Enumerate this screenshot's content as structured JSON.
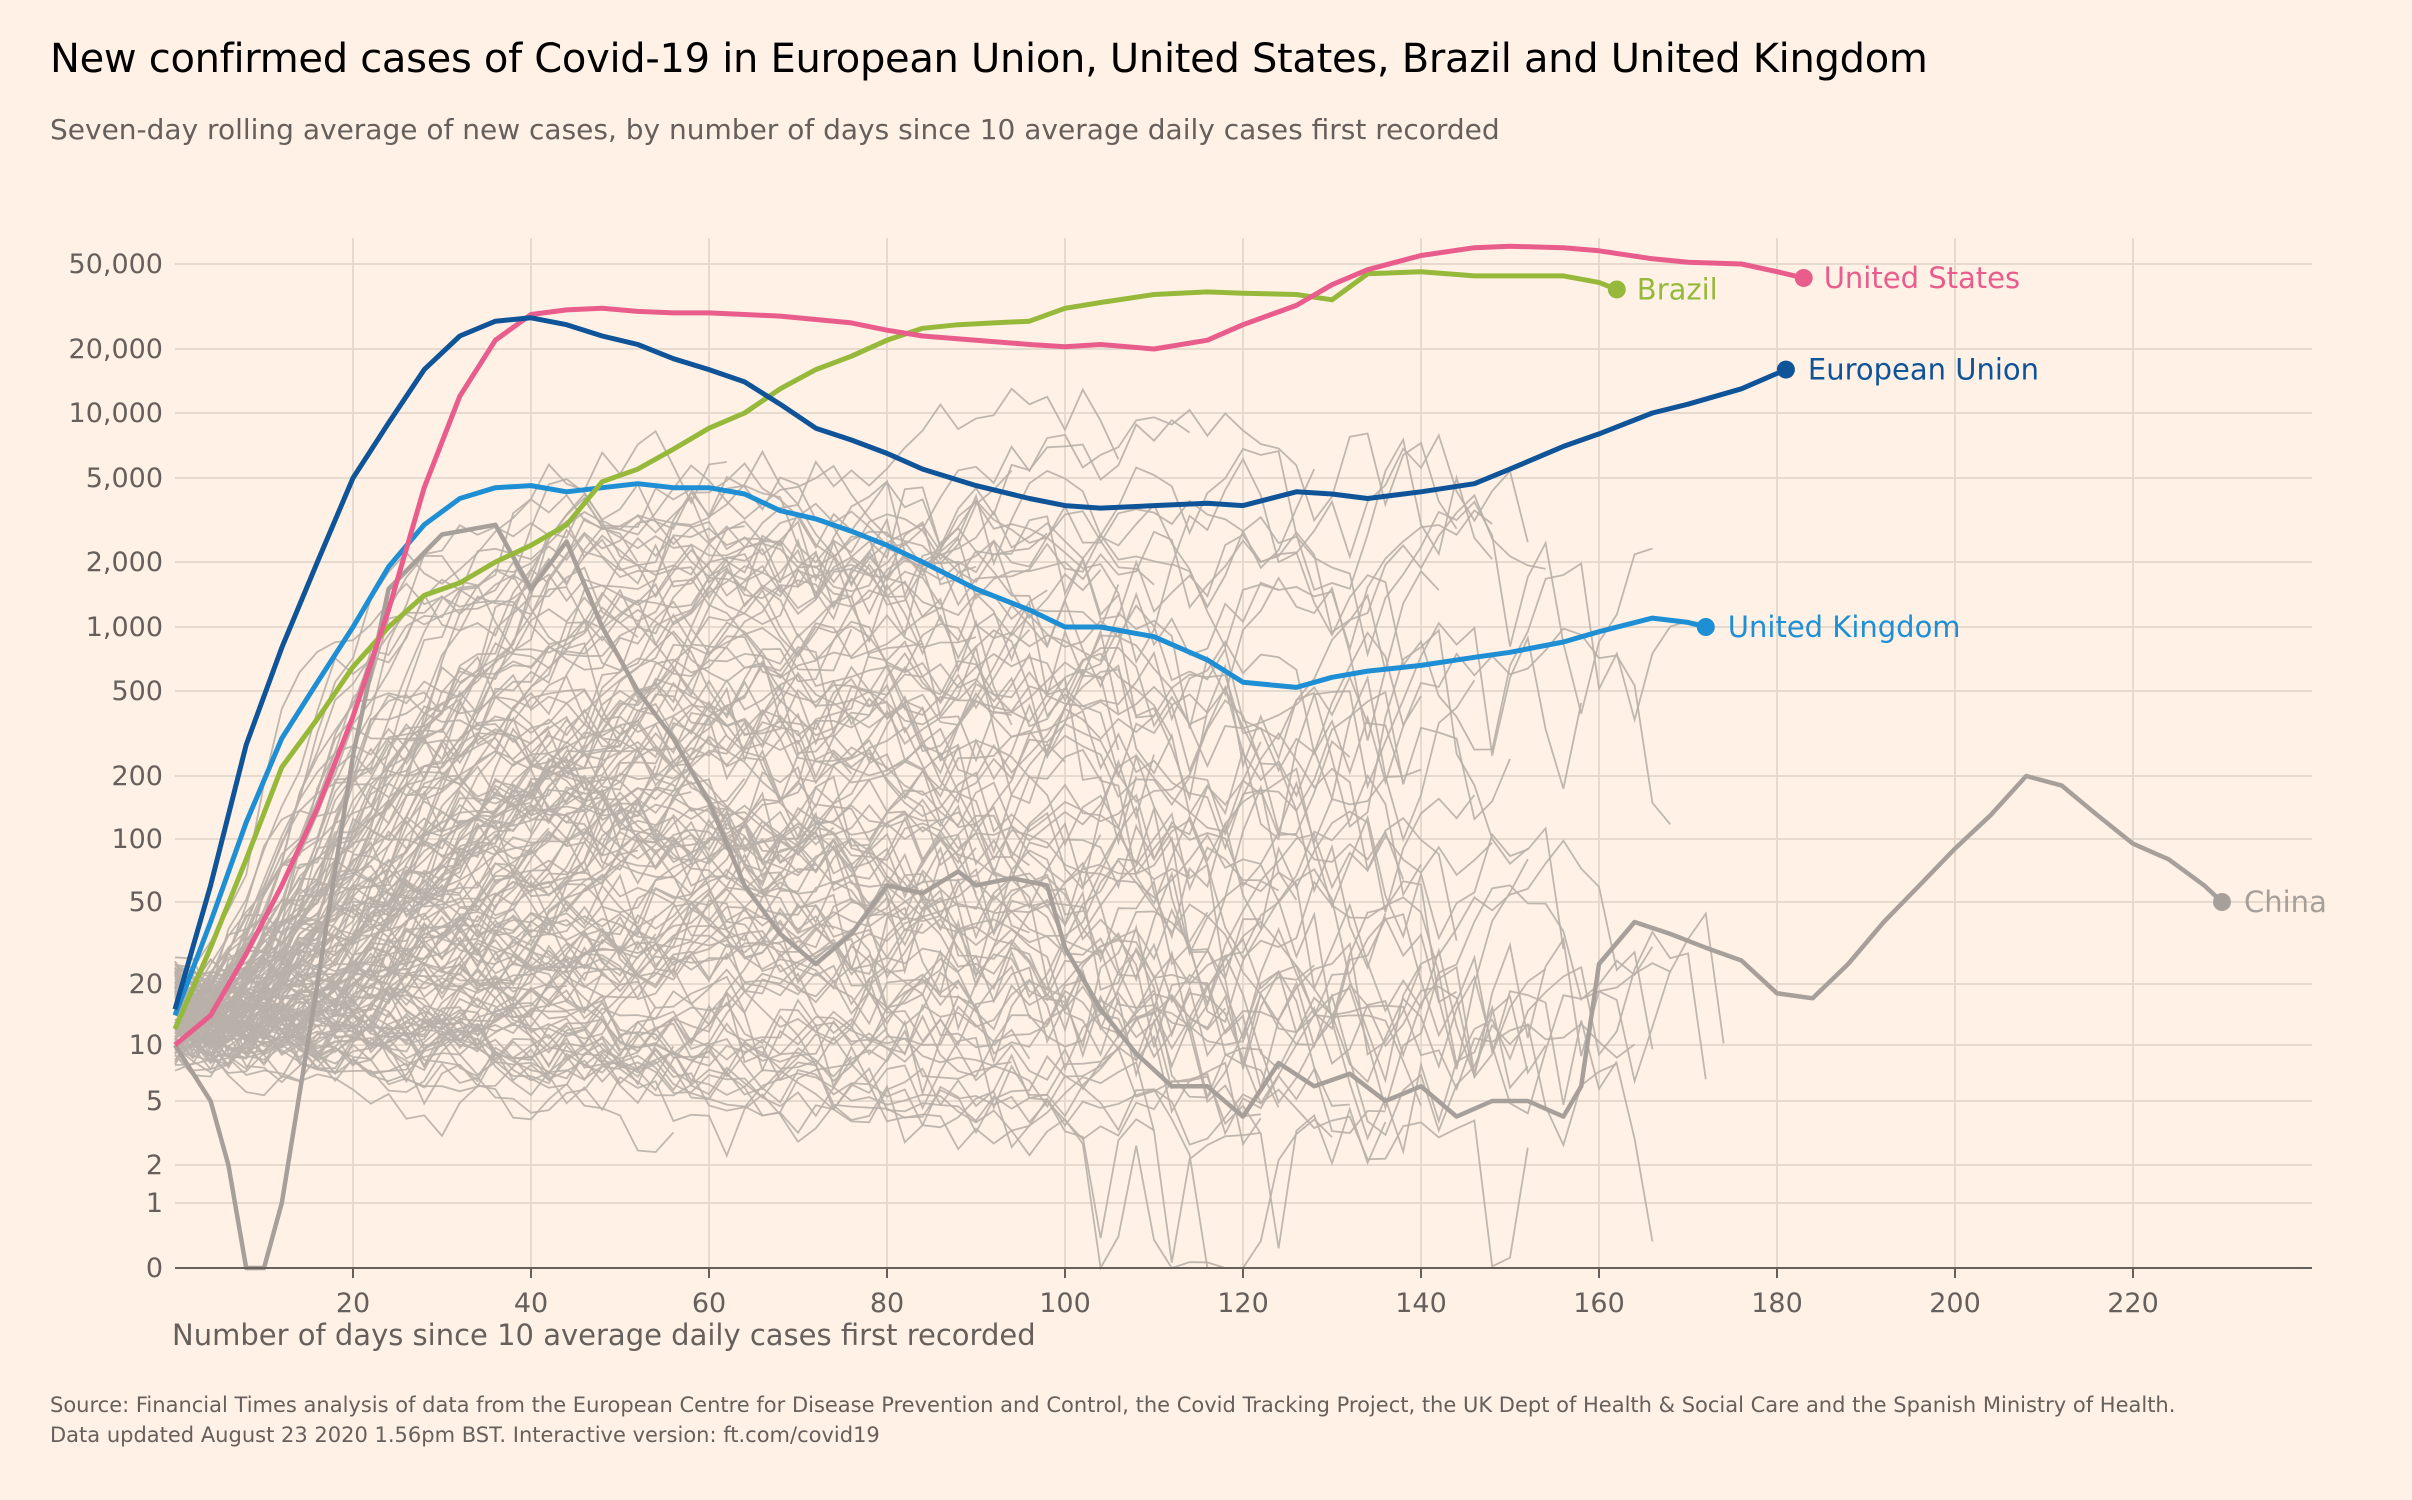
{
  "chart_data": {
    "type": "line",
    "title": "New confirmed cases of Covid-19 in European Union, United States, Brazil and United Kingdom",
    "subtitle": "Seven-day rolling average of new cases, by number of days since 10 average daily cases first recorded",
    "xlabel": "Number of days since 10 average daily cases first recorded",
    "ylabel": "",
    "y_scale": "log",
    "x_range": [
      0,
      240
    ],
    "x_ticks": [
      20,
      40,
      60,
      80,
      100,
      120,
      140,
      160,
      180,
      200,
      220
    ],
    "y_ticks": [
      0,
      1,
      2,
      5,
      10,
      20,
      50,
      100,
      200,
      500,
      1000,
      2000,
      5000,
      10000,
      20000,
      50000
    ],
    "y_tick_labels": [
      "0",
      "1",
      "2",
      "5",
      "10",
      "20",
      "50",
      "100",
      "200",
      "500",
      "1,000",
      "2,000",
      "5,000",
      "10,000",
      "20,000",
      "50,000"
    ],
    "grid": true,
    "series": [
      {
        "name": "United States",
        "color": "#e95d8c",
        "x": [
          0,
          4,
          8,
          12,
          16,
          20,
          24,
          28,
          32,
          36,
          40,
          44,
          48,
          52,
          56,
          60,
          64,
          68,
          72,
          76,
          80,
          84,
          90,
          96,
          100,
          104,
          110,
          116,
          120,
          126,
          130,
          134,
          140,
          146,
          150,
          156,
          160,
          166,
          170,
          176,
          180,
          183
        ],
        "y": [
          10,
          14,
          28,
          60,
          140,
          380,
          1200,
          4500,
          12000,
          22000,
          29000,
          30500,
          31000,
          30000,
          29500,
          29500,
          29000,
          28500,
          27500,
          26500,
          24500,
          23000,
          22000,
          21000,
          20500,
          21000,
          20000,
          22000,
          26000,
          32000,
          40000,
          47000,
          55000,
          60000,
          61000,
          60000,
          58000,
          53000,
          51000,
          50000,
          46000,
          43000
        ]
      },
      {
        "name": "Brazil",
        "color": "#96b93b",
        "x": [
          0,
          4,
          8,
          12,
          16,
          20,
          24,
          28,
          32,
          36,
          40,
          44,
          48,
          52,
          56,
          60,
          64,
          68,
          72,
          76,
          80,
          84,
          88,
          92,
          96,
          100,
          104,
          110,
          116,
          120,
          126,
          130,
          134,
          140,
          146,
          150,
          156,
          160,
          162
        ],
        "y": [
          12,
          30,
          80,
          220,
          370,
          650,
          1000,
          1400,
          1600,
          2000,
          2400,
          3000,
          4800,
          5500,
          6800,
          8500,
          10000,
          13000,
          16000,
          18500,
          22000,
          25000,
          26000,
          26500,
          27000,
          31000,
          33000,
          36000,
          37000,
          36500,
          36000,
          34000,
          45000,
          46000,
          44000,
          44000,
          44000,
          41000,
          38000
        ]
      },
      {
        "name": "European Union",
        "color": "#0f5499",
        "x": [
          0,
          4,
          8,
          12,
          16,
          20,
          24,
          28,
          32,
          36,
          40,
          44,
          48,
          52,
          56,
          60,
          64,
          68,
          72,
          76,
          80,
          84,
          90,
          96,
          100,
          104,
          110,
          116,
          120,
          126,
          130,
          134,
          140,
          146,
          150,
          156,
          160,
          166,
          170,
          176,
          181
        ],
        "y": [
          15,
          60,
          280,
          800,
          2000,
          5000,
          9000,
          16000,
          23000,
          27000,
          28000,
          26000,
          23000,
          21000,
          18000,
          16000,
          14000,
          11000,
          8500,
          7500,
          6500,
          5500,
          4600,
          4000,
          3700,
          3600,
          3700,
          3800,
          3700,
          4300,
          4200,
          4000,
          4300,
          4700,
          5500,
          7000,
          8000,
          10000,
          11000,
          13000,
          16000
        ]
      },
      {
        "name": "United Kingdom",
        "color": "#1e8fd4",
        "x": [
          0,
          4,
          8,
          12,
          16,
          20,
          24,
          28,
          32,
          36,
          40,
          44,
          48,
          52,
          56,
          60,
          64,
          68,
          72,
          76,
          80,
          84,
          90,
          96,
          100,
          104,
          110,
          116,
          120,
          126,
          130,
          134,
          140,
          146,
          150,
          156,
          160,
          166,
          170,
          172
        ],
        "y": [
          14,
          40,
          120,
          300,
          550,
          1000,
          1900,
          3000,
          4000,
          4500,
          4600,
          4300,
          4500,
          4700,
          4500,
          4500,
          4200,
          3500,
          3200,
          2800,
          2400,
          2000,
          1500,
          1200,
          1000,
          1000,
          900,
          700,
          550,
          520,
          580,
          620,
          660,
          720,
          760,
          850,
          950,
          1100,
          1050,
          1000
        ]
      },
      {
        "name": "China",
        "color": "#a7a09a",
        "x": [
          0,
          4,
          6,
          8,
          10,
          12,
          16,
          20,
          24,
          30,
          36,
          40,
          44,
          48,
          52,
          56,
          60,
          64,
          68,
          72,
          76,
          80,
          84,
          88,
          90,
          94,
          98,
          100,
          104,
          108,
          112,
          116,
          120,
          124,
          128,
          132,
          136,
          140,
          144,
          148,
          152,
          156,
          158,
          160,
          164,
          168,
          172,
          176,
          180,
          184,
          188,
          192,
          196,
          200,
          204,
          208,
          212,
          216,
          220,
          224,
          228,
          230
        ],
        "y": [
          10,
          5,
          2,
          0,
          0,
          1,
          20,
          250,
          1500,
          2700,
          3000,
          1500,
          2500,
          1000,
          500,
          300,
          150,
          60,
          35,
          25,
          35,
          60,
          55,
          70,
          60,
          65,
          60,
          30,
          15,
          9,
          6,
          6,
          4,
          8,
          6,
          7,
          5,
          6,
          4,
          5,
          5,
          4,
          6,
          25,
          40,
          35,
          30,
          26,
          18,
          17,
          25,
          40,
          60,
          90,
          130,
          200,
          180,
          130,
          95,
          80,
          60,
          50
        ]
      }
    ],
    "highlight_labels": [
      "United States",
      "Brazil",
      "European Union",
      "United Kingdom",
      "China"
    ]
  },
  "chart": {
    "x_tick_labels": [
      "20",
      "40",
      "60",
      "80",
      "100",
      "120",
      "140",
      "160",
      "180",
      "200",
      "220"
    ]
  },
  "source": {
    "line1": "Source: Financial Times analysis of data from the European Centre for Disease Prevention and Control, the Covid Tracking Project, the UK Dept of Health & Social Care and the Spanish Ministry of Health.",
    "line2": "Data updated August 23 2020 1.56pm BST. Interactive version: ft.com/covid19"
  }
}
